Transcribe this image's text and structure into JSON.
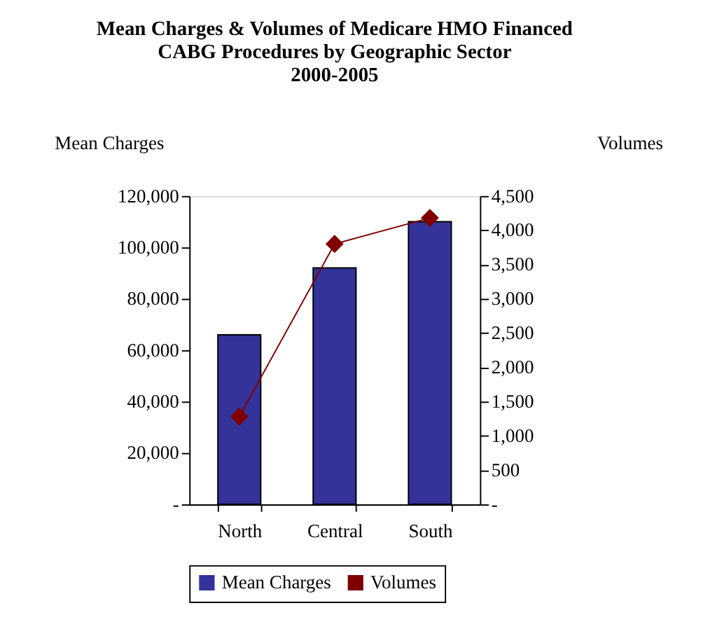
{
  "chart_data": {
    "type": "bar",
    "title": "Mean Charges & Volumes of Medicare HMO Financed\nCABG Procedures by Geographic Sector\n2000-2005",
    "ylabel": "Mean Charges",
    "y2label": "Volumes",
    "categories": [
      "North",
      "Central",
      "South"
    ],
    "series": [
      {
        "name": "Mean Charges",
        "color": "#333399",
        "values": [
          66000,
          92000,
          110000
        ]
      },
      {
        "name": "Volumes",
        "type": "line",
        "axis": "y2",
        "color": "#800000",
        "marker": "diamond",
        "values": [
          1280,
          3800,
          4180
        ]
      }
    ],
    "ylim": [
      0,
      120000
    ],
    "yticks": [
      {
        "value": 0,
        "label": "-"
      },
      {
        "value": 20000,
        "label": "20,000"
      },
      {
        "value": 40000,
        "label": "40,000"
      },
      {
        "value": 60000,
        "label": "60,000"
      },
      {
        "value": 80000,
        "label": "80,000"
      },
      {
        "value": 100000,
        "label": "100,000"
      },
      {
        "value": 120000,
        "label": "120,000"
      }
    ],
    "y2lim": [
      0,
      4500
    ],
    "y2ticks": [
      {
        "value": 0,
        "label": "-"
      },
      500,
      {
        "value": 1000,
        "label": "1,000"
      },
      {
        "value": 1500,
        "label": "1,500"
      },
      {
        "value": 2000,
        "label": "2,000"
      },
      {
        "value": 2500,
        "label": "2,500"
      },
      {
        "value": 3000,
        "label": "3,000"
      },
      {
        "value": 3500,
        "label": "3,500"
      },
      {
        "value": 4000,
        "label": "4,000"
      },
      {
        "value": 4500,
        "label": "4,500"
      }
    ],
    "grid": false,
    "legend": "bottom"
  }
}
